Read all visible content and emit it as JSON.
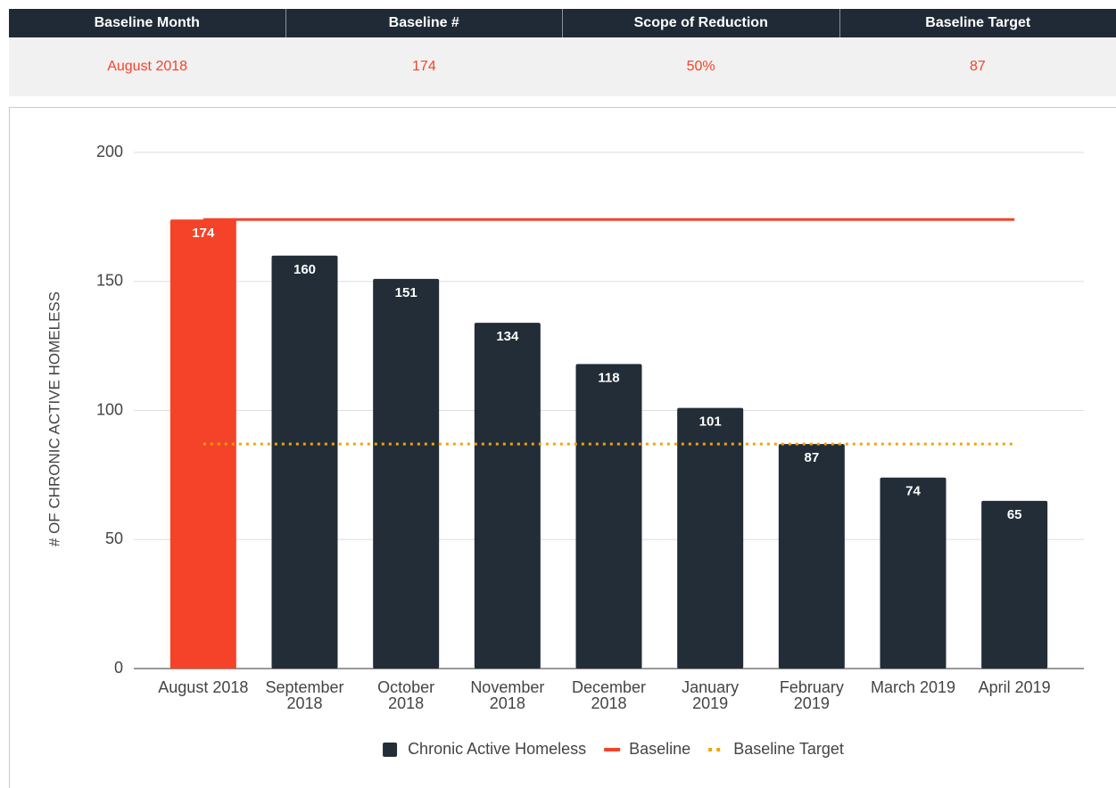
{
  "table": {
    "headers": [
      "Baseline Month",
      "Baseline #",
      "Scope of Reduction",
      "Baseline Target"
    ],
    "rows": [
      [
        "August 2018",
        "174",
        "50%",
        "87"
      ]
    ]
  },
  "chart_data": {
    "type": "bar",
    "y_label": "# OF CHRONIC ACTIVE HOMELESS",
    "categories": [
      "August 2018",
      "September 2018",
      "October 2018",
      "November 2018",
      "December 2018",
      "January 2019",
      "February 2019",
      "March 2019",
      "April 2019"
    ],
    "series": [
      {
        "name": "Chronic Active Homeless",
        "type": "bar",
        "color": "#222d38",
        "highlight": {
          "index": 0,
          "color": "#f44329"
        },
        "values": [
          174,
          160,
          151,
          134,
          118,
          101,
          87,
          74,
          65
        ]
      },
      {
        "name": "Baseline",
        "type": "line",
        "color": "#f44329",
        "values": [
          174,
          174,
          174,
          174,
          174,
          174,
          174,
          174,
          174
        ]
      },
      {
        "name": "Baseline Target",
        "type": "line",
        "dashed": true,
        "color": "#f5a300",
        "values": [
          87,
          87,
          87,
          87,
          87,
          87,
          87,
          87,
          87
        ]
      }
    ],
    "ylim": [
      0,
      200
    ],
    "yticks": [
      0,
      50,
      100,
      150,
      200
    ],
    "grid": true,
    "legend": "bottom"
  }
}
